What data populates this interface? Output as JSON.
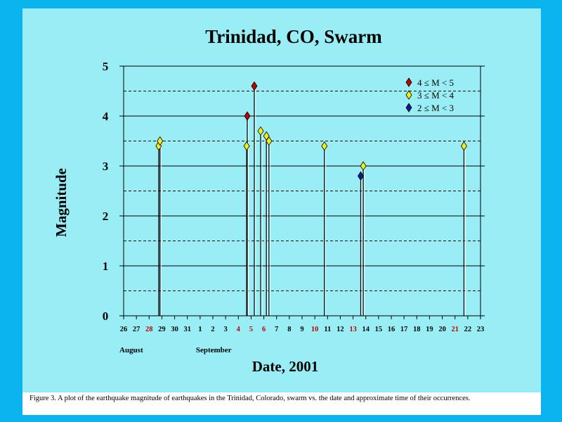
{
  "chart_data": {
    "type": "scatter",
    "title": "Trinidad, CO, Swarm",
    "xlabel": "Date, 2001",
    "ylabel": "Magnitude",
    "ylim": [
      0,
      5
    ],
    "y_ticks": [
      "0",
      "1",
      "2",
      "3",
      "4",
      "5"
    ],
    "x_tick_labels": [
      "26",
      "27",
      "28",
      "29",
      "30",
      "31",
      "1",
      "2",
      "3",
      "4",
      "5",
      "6",
      "7",
      "8",
      "9",
      "10",
      "11",
      "12",
      "13",
      "14",
      "15",
      "16",
      "17",
      "18",
      "19",
      "20",
      "21",
      "22",
      "23"
    ],
    "x_tick_highlight": [
      "28",
      "4",
      "5",
      "6",
      "10",
      "13",
      "21"
    ],
    "month_labels": [
      {
        "label": "August",
        "at_tick": 0
      },
      {
        "label": "September",
        "at_tick": 6
      }
    ],
    "grid": {
      "solid_y": [
        1,
        2,
        3,
        4
      ],
      "dashed_y": [
        0.5,
        1.5,
        2.5,
        3.5,
        4.5
      ]
    },
    "legend": {
      "position": "top-right",
      "entries": [
        {
          "label": "4 ≤ M < 5",
          "color": "#c00000"
        },
        {
          "label": "3 ≤ M < 4",
          "color": "#f5ec1e"
        },
        {
          "label": "2 ≤ M < 3",
          "color": "#0a1e8c"
        }
      ]
    },
    "events": [
      {
        "day": 2.75,
        "magnitude": 3.4
      },
      {
        "day": 2.85,
        "magnitude": 3.5
      },
      {
        "day": 9.65,
        "magnitude": 3.4
      },
      {
        "day": 9.7,
        "magnitude": 4.0
      },
      {
        "day": 10.25,
        "magnitude": 4.6
      },
      {
        "day": 10.75,
        "magnitude": 3.7
      },
      {
        "day": 11.2,
        "magnitude": 3.6
      },
      {
        "day": 11.4,
        "magnitude": 3.5
      },
      {
        "day": 15.75,
        "magnitude": 3.4
      },
      {
        "day": 18.6,
        "magnitude": 2.8
      },
      {
        "day": 18.8,
        "magnitude": 3.0
      },
      {
        "day": 26.7,
        "magnitude": 3.4
      }
    ]
  },
  "caption": "Figure 3.  A plot of the earthquake magnitude of earthquakes in the Trinidad, Colorado, swarm vs. the date and approximate time of their occurrences."
}
